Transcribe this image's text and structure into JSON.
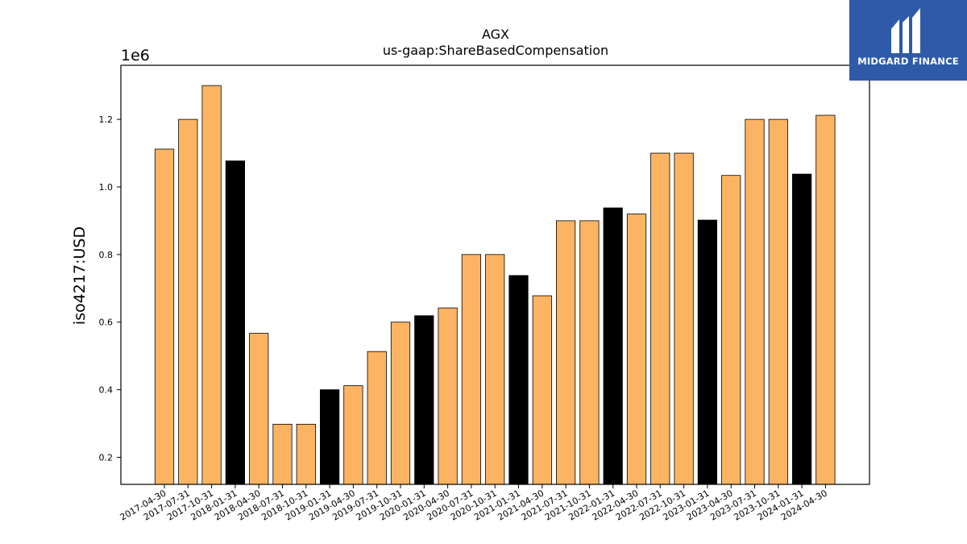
{
  "brand": {
    "name": "MIDGARD FINANCE",
    "background": "#2e5aa8"
  },
  "chart_data": {
    "type": "bar",
    "title": "AGX",
    "subtitle": "us-gaap:ShareBasedCompensation",
    "ylabel": "iso4217:USD",
    "xlabel": "",
    "y_multiplier_label": "1e6",
    "ylim": [
      120000,
      1360000
    ],
    "yticks": [
      0.2,
      0.4,
      0.6,
      0.8,
      1.0,
      1.2
    ],
    "grid": false,
    "colors": {
      "quarter": "#fdb462",
      "fiscal_year_end": "#000000",
      "edge": "#000000"
    },
    "categories": [
      "2017-04-30",
      "2017-07-31",
      "2017-10-31",
      "2018-01-31",
      "2018-04-30",
      "2018-07-31",
      "2018-10-31",
      "2019-01-31",
      "2019-04-30",
      "2019-07-31",
      "2019-10-31",
      "2020-01-31",
      "2020-04-30",
      "2020-07-31",
      "2020-10-31",
      "2021-01-31",
      "2021-04-30",
      "2021-07-31",
      "2021-10-31",
      "2022-01-31",
      "2022-04-30",
      "2022-07-31",
      "2022-10-31",
      "2023-01-31",
      "2023-04-30",
      "2023-07-31",
      "2023-10-31",
      "2024-01-31",
      "2024-04-30"
    ],
    "values": [
      1112000,
      1200000,
      1300000,
      1077000,
      567000,
      298000,
      298000,
      400000,
      412000,
      513000,
      600000,
      619000,
      642000,
      800000,
      800000,
      738000,
      678000,
      900000,
      900000,
      938000,
      920000,
      1100000,
      1100000,
      902000,
      1034000,
      1200000,
      1200000,
      1038000,
      1212000
    ],
    "highlight": [
      false,
      false,
      false,
      true,
      false,
      false,
      false,
      true,
      false,
      false,
      false,
      true,
      false,
      false,
      false,
      true,
      false,
      false,
      false,
      true,
      false,
      false,
      false,
      true,
      false,
      false,
      false,
      true,
      false
    ]
  }
}
